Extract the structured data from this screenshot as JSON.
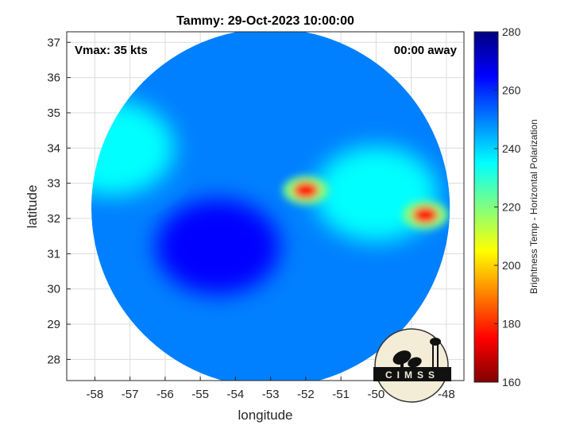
{
  "chart_data": {
    "type": "heatmap",
    "title": "Tammy: 29-Oct-2023 10:00:00",
    "xlabel": "longitude",
    "ylabel": "latitude",
    "xlim": [
      -58.8,
      -47.5
    ],
    "ylim": [
      27.4,
      37.3
    ],
    "xticks": [
      -58,
      -57,
      -56,
      -55,
      -54,
      -53,
      -52,
      -51,
      -50,
      -49,
      -48
    ],
    "yticks": [
      28,
      29,
      30,
      31,
      32,
      33,
      34,
      35,
      36,
      37
    ],
    "grid": true,
    "annotations": {
      "vmax": "Vmax: 35 kts",
      "away": "00:00 away"
    },
    "colorbar": {
      "label": "Brightness Temp - Horizontal Polarization",
      "min": 160,
      "max": 280,
      "ticks": [
        160,
        180,
        200,
        220,
        240,
        260,
        280
      ],
      "colormap": [
        "#800000",
        "#ff0000",
        "#ff8000",
        "#ffff00",
        "#80ff80",
        "#00ffff",
        "#0080ff",
        "#0000ff",
        "#000080"
      ]
    },
    "swath": {
      "center_lon": -53.0,
      "center_lat": 32.3,
      "radius_deg": 5.1,
      "background_temp": 255
    },
    "features": [
      {
        "name": "central dense overcast",
        "lon": -52.0,
        "lat": 32.8,
        "temp": 175
      },
      {
        "name": "eastern band convection",
        "lon": -48.6,
        "lat": 32.1,
        "temp": 180
      },
      {
        "name": "spiral rainband",
        "lon": -50.0,
        "lat": 32.7,
        "temp": 240
      },
      {
        "name": "cold eye region",
        "lon": -54.5,
        "lat": 31.2,
        "temp": 270
      },
      {
        "name": "northwest warm area",
        "lon": -57.5,
        "lat": 34.0,
        "temp": 235
      }
    ]
  },
  "logo": {
    "text": "CIMSS"
  }
}
